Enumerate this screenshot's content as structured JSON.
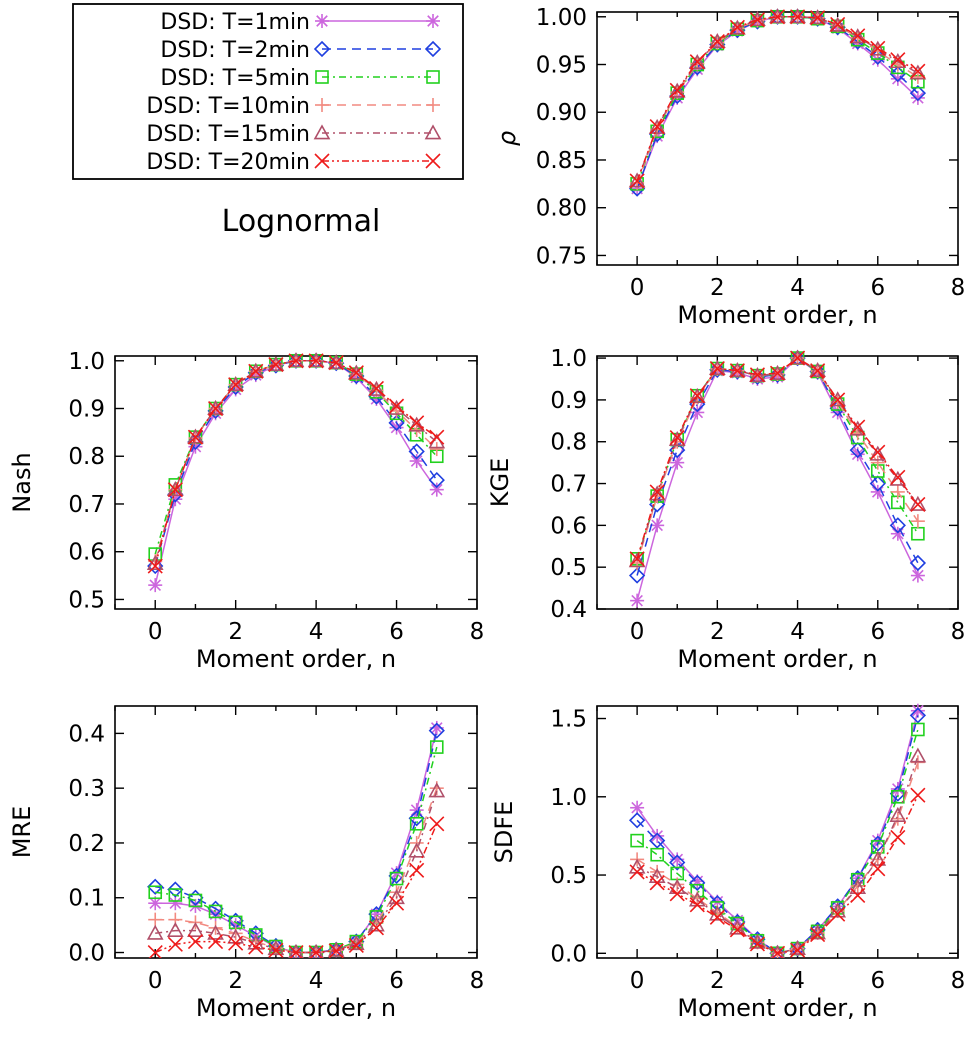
{
  "figure": {
    "caption": "Lognormal",
    "legend": [
      {
        "label": "DSD: T=1min",
        "color": "#cc66dd",
        "marker": "asterisk",
        "dash": ""
      },
      {
        "label": "DSD: T=2min",
        "color": "#1f3fe0",
        "marker": "diamond",
        "dash": "9,6"
      },
      {
        "label": "DSD: T=5min",
        "color": "#22d11e",
        "marker": "square",
        "dash": "7,4,2,4"
      },
      {
        "label": "DSD: T=10min",
        "color": "#f28a80",
        "marker": "plus",
        "dash": "9,6"
      },
      {
        "label": "DSD: T=15min",
        "color": "#b0506a",
        "marker": "triangle",
        "dash": "7,4,2,4"
      },
      {
        "label": "DSD: T=20min",
        "color": "#ee1a1a",
        "marker": "cross",
        "dash": "7,3,2,3,2,3"
      }
    ]
  },
  "chart_data": [
    {
      "type": "line",
      "title": "",
      "xlabel": "Moment order, n",
      "ylabel": "ρ",
      "xlim": [
        -1,
        8
      ],
      "ylim": [
        0.74,
        1.005
      ],
      "xticks": [
        0,
        2,
        4,
        6,
        8
      ],
      "yticks": [
        0.75,
        0.8,
        0.85,
        0.9,
        0.95,
        1.0
      ],
      "ytick_labels": [
        "0.75",
        "0.80",
        "0.85",
        "0.90",
        "0.95",
        "1.00"
      ],
      "x": [
        0,
        0.5,
        1,
        1.5,
        2,
        2.5,
        3,
        3.5,
        4,
        4.5,
        5,
        5.5,
        6,
        6.5,
        7
      ],
      "series": [
        {
          "name": "DSD: T=1min",
          "values": [
            0.82,
            0.875,
            0.915,
            0.945,
            0.97,
            0.985,
            0.995,
            1.0,
            1.0,
            0.998,
            0.988,
            0.972,
            0.955,
            0.935,
            0.915
          ]
        },
        {
          "name": "DSD: T=2min",
          "values": [
            0.82,
            0.877,
            0.917,
            0.947,
            0.971,
            0.986,
            0.995,
            1.0,
            1.0,
            0.998,
            0.989,
            0.974,
            0.958,
            0.94,
            0.92
          ]
        },
        {
          "name": "DSD: T=5min",
          "values": [
            0.825,
            0.88,
            0.92,
            0.95,
            0.972,
            0.987,
            0.996,
            1.0,
            1.0,
            0.998,
            0.99,
            0.976,
            0.962,
            0.947,
            0.932
          ]
        },
        {
          "name": "DSD: T=10min",
          "values": [
            0.826,
            0.882,
            0.921,
            0.951,
            0.973,
            0.988,
            0.996,
            1.0,
            1.0,
            0.999,
            0.991,
            0.978,
            0.964,
            0.95,
            0.937
          ]
        },
        {
          "name": "DSD: T=15min",
          "values": [
            0.828,
            0.884,
            0.922,
            0.952,
            0.974,
            0.988,
            0.997,
            1.0,
            1.0,
            0.999,
            0.991,
            0.979,
            0.966,
            0.953,
            0.941
          ]
        },
        {
          "name": "DSD: T=20min",
          "values": [
            0.828,
            0.885,
            0.923,
            0.953,
            0.974,
            0.989,
            0.997,
            1.0,
            1.0,
            0.999,
            0.992,
            0.98,
            0.967,
            0.955,
            0.943
          ]
        }
      ]
    },
    {
      "type": "line",
      "title": "",
      "xlabel": "Moment order, n",
      "ylabel": "Nash",
      "xlim": [
        -1,
        8
      ],
      "ylim": [
        0.48,
        1.01
      ],
      "xticks": [
        0,
        2,
        4,
        6,
        8
      ],
      "yticks": [
        0.5,
        0.6,
        0.7,
        0.8,
        0.9,
        1.0
      ],
      "ytick_labels": [
        "0.5",
        "0.6",
        "0.7",
        "0.8",
        "0.9",
        "1.0"
      ],
      "x": [
        0,
        0.5,
        1,
        1.5,
        2,
        2.5,
        3,
        3.5,
        4,
        4.5,
        5,
        5.5,
        6,
        6.5,
        7
      ],
      "series": [
        {
          "name": "DSD: T=1min",
          "values": [
            0.53,
            0.71,
            0.82,
            0.89,
            0.94,
            0.97,
            0.99,
            1.0,
            1.0,
            0.995,
            0.965,
            0.92,
            0.86,
            0.79,
            0.73
          ]
        },
        {
          "name": "DSD: T=2min",
          "values": [
            0.57,
            0.72,
            0.83,
            0.895,
            0.945,
            0.975,
            0.99,
            1.0,
            1.0,
            0.995,
            0.968,
            0.925,
            0.87,
            0.81,
            0.75
          ]
        },
        {
          "name": "DSD: T=5min",
          "values": [
            0.595,
            0.74,
            0.84,
            0.9,
            0.95,
            0.978,
            0.992,
            1.0,
            1.0,
            0.996,
            0.972,
            0.935,
            0.89,
            0.845,
            0.8
          ]
        },
        {
          "name": "DSD: T=10min",
          "values": [
            0.58,
            0.73,
            0.838,
            0.9,
            0.95,
            0.978,
            0.992,
            1.0,
            1.0,
            0.996,
            0.973,
            0.938,
            0.895,
            0.855,
            0.815
          ]
        },
        {
          "name": "DSD: T=15min",
          "values": [
            0.575,
            0.73,
            0.84,
            0.9,
            0.95,
            0.978,
            0.992,
            1.0,
            1.0,
            0.996,
            0.974,
            0.94,
            0.9,
            0.865,
            0.83
          ]
        },
        {
          "name": "DSD: T=20min",
          "values": [
            0.57,
            0.73,
            0.84,
            0.9,
            0.95,
            0.978,
            0.992,
            1.0,
            1.0,
            0.996,
            0.975,
            0.942,
            0.905,
            0.87,
            0.84
          ]
        }
      ]
    },
    {
      "type": "line",
      "title": "",
      "xlabel": "Moment order, n",
      "ylabel": "KGE",
      "xlim": [
        -1,
        8
      ],
      "ylim": [
        0.4,
        1.005
      ],
      "xticks": [
        0,
        2,
        4,
        6,
        8
      ],
      "yticks": [
        0.4,
        0.5,
        0.6,
        0.7,
        0.8,
        0.9,
        1.0
      ],
      "ytick_labels": [
        "0.4",
        "0.5",
        "0.6",
        "0.7",
        "0.8",
        "0.9",
        "1.0"
      ],
      "x": [
        0,
        0.5,
        1,
        1.5,
        2,
        2.5,
        3,
        3.5,
        4,
        4.5,
        5,
        5.5,
        6,
        6.5,
        7
      ],
      "series": [
        {
          "name": "DSD: T=1min",
          "values": [
            0.42,
            0.6,
            0.75,
            0.87,
            0.97,
            0.965,
            0.95,
            0.955,
            1.0,
            0.965,
            0.87,
            0.77,
            0.68,
            0.58,
            0.48
          ]
        },
        {
          "name": "DSD: T=2min",
          "values": [
            0.48,
            0.65,
            0.78,
            0.89,
            0.972,
            0.968,
            0.955,
            0.96,
            1.0,
            0.968,
            0.88,
            0.78,
            0.7,
            0.6,
            0.51
          ]
        },
        {
          "name": "DSD: T=5min",
          "values": [
            0.52,
            0.67,
            0.805,
            0.91,
            0.975,
            0.97,
            0.958,
            0.962,
            1.0,
            0.968,
            0.89,
            0.81,
            0.73,
            0.655,
            0.58
          ]
        },
        {
          "name": "DSD: T=10min",
          "values": [
            0.51,
            0.67,
            0.8,
            0.905,
            0.974,
            0.97,
            0.958,
            0.962,
            1.0,
            0.969,
            0.895,
            0.82,
            0.75,
            0.68,
            0.61
          ]
        },
        {
          "name": "DSD: T=15min",
          "values": [
            0.515,
            0.675,
            0.805,
            0.908,
            0.975,
            0.97,
            0.958,
            0.963,
            1.0,
            0.97,
            0.9,
            0.83,
            0.77,
            0.71,
            0.65
          ]
        },
        {
          "name": "DSD: T=20min",
          "values": [
            0.52,
            0.68,
            0.81,
            0.91,
            0.975,
            0.97,
            0.96,
            0.964,
            1.0,
            0.97,
            0.9,
            0.835,
            0.775,
            0.715,
            0.65
          ]
        }
      ]
    },
    {
      "type": "line",
      "title": "",
      "xlabel": "Moment order, n",
      "ylabel": "MRE",
      "xlim": [
        -1,
        8
      ],
      "ylim": [
        -0.01,
        0.45
      ],
      "xticks": [
        0,
        2,
        4,
        6,
        8
      ],
      "yticks": [
        0.0,
        0.1,
        0.2,
        0.3,
        0.4
      ],
      "ytick_labels": [
        "0.0",
        "0.1",
        "0.2",
        "0.3",
        "0.4"
      ],
      "x": [
        0,
        0.5,
        1,
        1.5,
        2,
        2.5,
        3,
        3.5,
        4,
        4.5,
        5,
        5.5,
        6,
        6.5,
        7
      ],
      "series": [
        {
          "name": "DSD: T=1min",
          "values": [
            0.09,
            0.09,
            0.085,
            0.07,
            0.05,
            0.03,
            0.01,
            0.0,
            0.0,
            0.005,
            0.02,
            0.07,
            0.145,
            0.26,
            0.41
          ]
        },
        {
          "name": "DSD: T=2min",
          "values": [
            0.12,
            0.115,
            0.1,
            0.08,
            0.058,
            0.035,
            0.012,
            0.0,
            0.0,
            0.005,
            0.02,
            0.07,
            0.14,
            0.245,
            0.405
          ]
        },
        {
          "name": "DSD: T=5min",
          "values": [
            0.11,
            0.105,
            0.095,
            0.075,
            0.055,
            0.032,
            0.011,
            0.0,
            0.0,
            0.005,
            0.02,
            0.065,
            0.135,
            0.235,
            0.375
          ]
        },
        {
          "name": "DSD: T=10min",
          "values": [
            0.06,
            0.06,
            0.055,
            0.045,
            0.035,
            0.02,
            0.008,
            0.0,
            0.0,
            0.004,
            0.017,
            0.055,
            0.11,
            0.2,
            0.3
          ]
        },
        {
          "name": "DSD: T=15min",
          "values": [
            0.035,
            0.04,
            0.04,
            0.035,
            0.028,
            0.017,
            0.007,
            0.0,
            0.0,
            0.004,
            0.016,
            0.05,
            0.1,
            0.185,
            0.295
          ]
        },
        {
          "name": "DSD: T=20min",
          "values": [
            0.0,
            0.015,
            0.02,
            0.02,
            0.017,
            0.01,
            0.004,
            0.0,
            0.0,
            0.003,
            0.013,
            0.045,
            0.09,
            0.15,
            0.235
          ]
        }
      ]
    },
    {
      "type": "line",
      "title": "",
      "xlabel": "Moment order, n",
      "ylabel": "SDFE",
      "xlim": [
        -1,
        8
      ],
      "ylim": [
        -0.03,
        1.58
      ],
      "xticks": [
        0,
        2,
        4,
        6,
        8
      ],
      "yticks": [
        0.0,
        0.5,
        1.0,
        1.5
      ],
      "ytick_labels": [
        "0.0",
        "0.5",
        "1.0",
        "1.5"
      ],
      "x": [
        0,
        0.5,
        1,
        1.5,
        2,
        2.5,
        3,
        3.5,
        4,
        4.5,
        5,
        5.5,
        6,
        6.5,
        7
      ],
      "series": [
        {
          "name": "DSD: T=1min",
          "values": [
            0.93,
            0.75,
            0.6,
            0.46,
            0.33,
            0.21,
            0.09,
            0.0,
            0.03,
            0.15,
            0.3,
            0.48,
            0.72,
            1.05,
            1.55
          ]
        },
        {
          "name": "DSD: T=2min",
          "values": [
            0.85,
            0.72,
            0.58,
            0.45,
            0.32,
            0.2,
            0.09,
            0.0,
            0.03,
            0.15,
            0.3,
            0.48,
            0.7,
            1.02,
            1.52
          ]
        },
        {
          "name": "DSD: T=5min",
          "values": [
            0.72,
            0.63,
            0.51,
            0.4,
            0.29,
            0.19,
            0.08,
            0.0,
            0.03,
            0.14,
            0.29,
            0.47,
            0.68,
            1.0,
            1.43
          ]
        },
        {
          "name": "DSD: T=10min",
          "values": [
            0.6,
            0.52,
            0.44,
            0.35,
            0.26,
            0.17,
            0.07,
            0.0,
            0.03,
            0.13,
            0.27,
            0.43,
            0.6,
            0.86,
            1.22
          ]
        },
        {
          "name": "DSD: T=15min",
          "values": [
            0.55,
            0.49,
            0.42,
            0.34,
            0.25,
            0.16,
            0.07,
            0.0,
            0.03,
            0.13,
            0.27,
            0.42,
            0.6,
            0.88,
            1.26
          ]
        },
        {
          "name": "DSD: T=20min",
          "values": [
            0.52,
            0.45,
            0.38,
            0.31,
            0.23,
            0.15,
            0.06,
            0.0,
            0.02,
            0.12,
            0.25,
            0.37,
            0.54,
            0.74,
            1.01
          ]
        }
      ]
    }
  ]
}
